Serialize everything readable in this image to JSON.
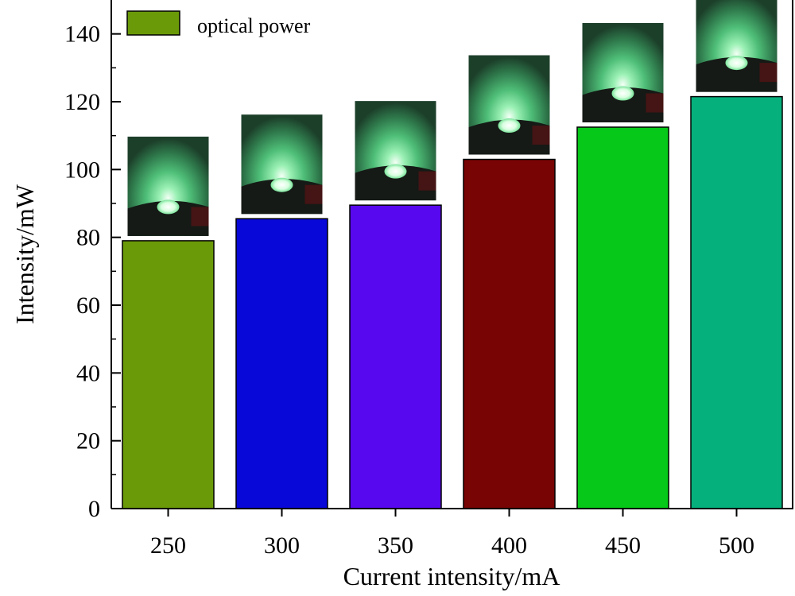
{
  "chart_data": {
    "type": "bar",
    "categories": [
      "250",
      "300",
      "350",
      "400",
      "450",
      "500"
    ],
    "values": [
      79,
      85.5,
      89.5,
      103,
      112.5,
      121.5
    ],
    "bar_colors": [
      "#6a9a08",
      "#0808d8",
      "#5808ee",
      "#780404",
      "#06c818",
      "#06b07c"
    ],
    "series": [
      {
        "name": "optical power",
        "values": [
          79,
          85.5,
          89.5,
          103,
          112.5,
          121.5
        ],
        "legend_color": "#6a9a08"
      }
    ],
    "xlabel": "Current intensity/mA",
    "ylabel": "Intensity/mW",
    "ylim": [
      0,
      150
    ],
    "yticks": [
      "0",
      "20",
      "40",
      "60",
      "80",
      "100",
      "120",
      "140"
    ],
    "grid": false,
    "legend_position": "top-left",
    "annotations": "photo of green-emitting LED above each bar"
  }
}
